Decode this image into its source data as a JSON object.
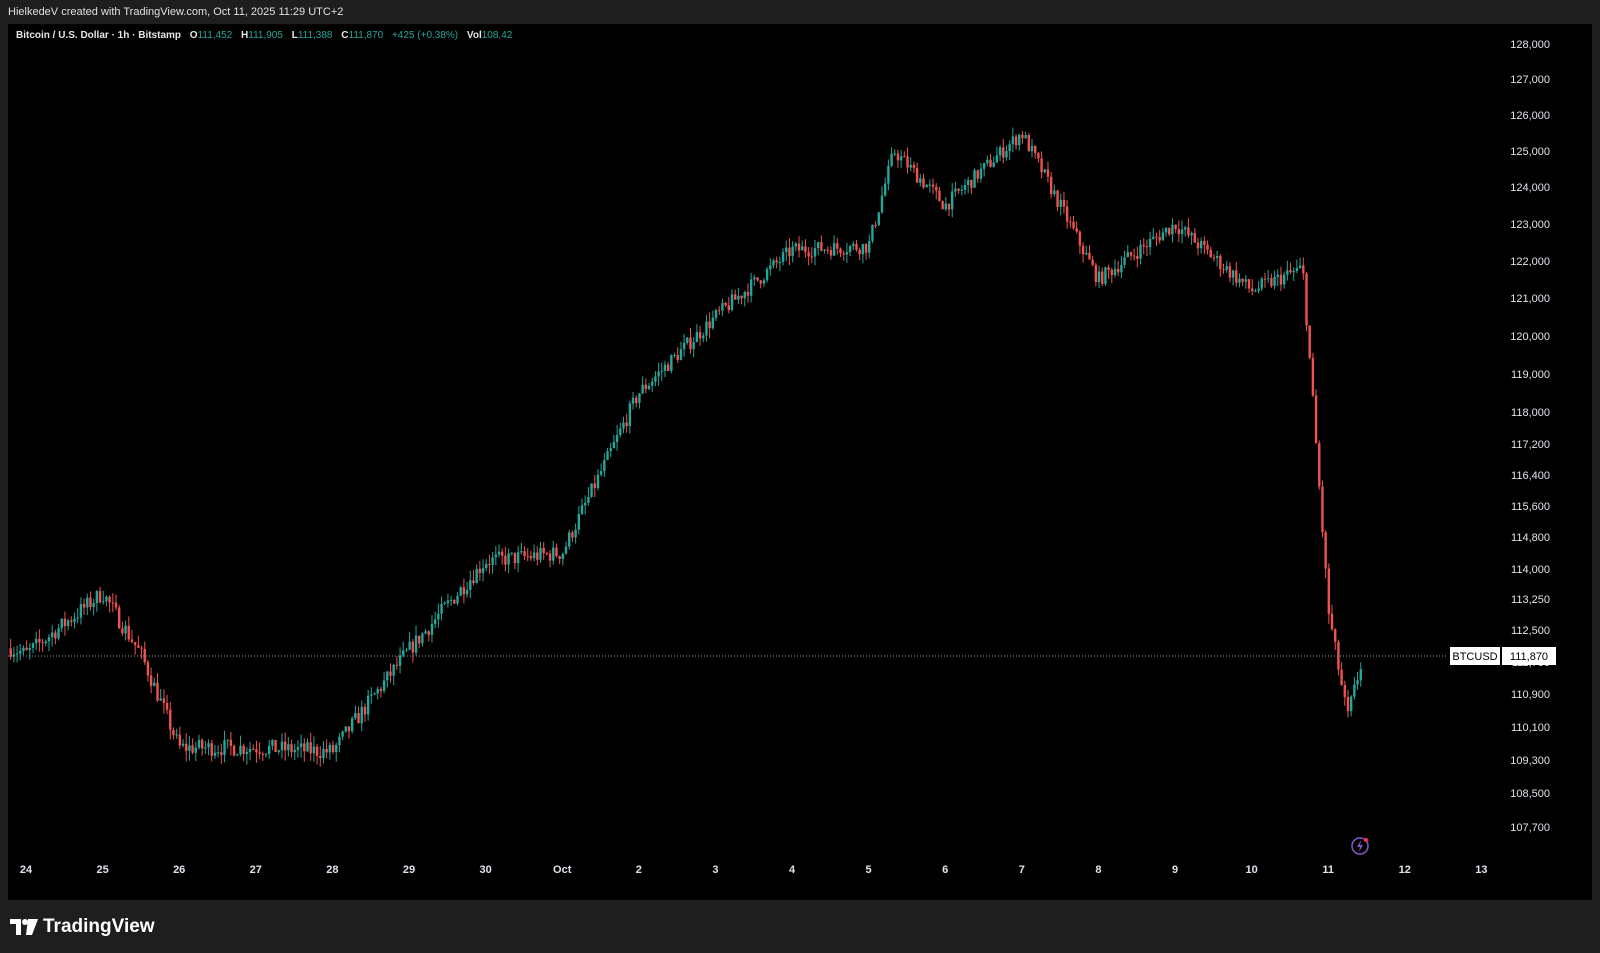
{
  "header": {
    "attribution": "HielkedeV created with TradingView.com, Oct 11, 2025 11:29 UTC+2"
  },
  "legend": {
    "symbol": "Bitcoin / U.S. Dollar · 1h · Bitstamp",
    "o_label": "O",
    "o_value": "111,452",
    "h_label": "H",
    "h_value": "111,905",
    "l_label": "L",
    "l_value": "111,388",
    "c_label": "C",
    "c_value": "111,870",
    "change": "+425 (+0.38%)",
    "vol_label": "Vol",
    "vol_value": "108.42"
  },
  "price_tag": {
    "ticker": "BTCUSD",
    "price": "111,870"
  },
  "footer": {
    "brand": "TradingView"
  },
  "colors": {
    "up": "#26a69a",
    "down": "#ef5350",
    "background": "#000000",
    "frame": "#1e1e1e",
    "pricetag": "#ffffff"
  },
  "icons": {
    "logo": "tradingview-logo-icon",
    "lightning": "lightning-icon"
  },
  "chart_data": {
    "type": "candlestick",
    "title": "Bitcoin / U.S. Dollar · 1h · Bitstamp",
    "x_tick_labels": [
      "24",
      "25",
      "26",
      "27",
      "28",
      "29",
      "30",
      "Oct",
      "2",
      "3",
      "4",
      "5",
      "6",
      "7",
      "8",
      "9",
      "10",
      "11",
      "12",
      "13"
    ],
    "y_tick_labels": [
      "128,000",
      "127,000",
      "126,000",
      "125,000",
      "124,000",
      "123,000",
      "122,000",
      "121,000",
      "120,000",
      "119,000",
      "118,000",
      "117,200",
      "116,400",
      "115,600",
      "114,800",
      "114,000",
      "113,250",
      "112,500",
      "111,700",
      "110,900",
      "110,100",
      "109,300",
      "108,500",
      "107,700"
    ],
    "y_ticks": [
      128000,
      127000,
      126000,
      125000,
      124000,
      123000,
      122000,
      121000,
      120000,
      119000,
      118000,
      117200,
      116400,
      115600,
      114800,
      114000,
      113250,
      112500,
      111700,
      110900,
      110100,
      109300,
      108500,
      107700
    ],
    "y_scale": "log",
    "ylim": [
      107200,
      128300
    ],
    "x_range_days": [
      "Sep 24 2025",
      "Oct 13 2025"
    ],
    "current_price": 111870,
    "approx_daily_path": [
      {
        "date": "Sep 23 2025",
        "price": 112600
      },
      {
        "date": "Sep 24 2025",
        "price": 111900
      },
      {
        "date": "Sep 25 2025",
        "price": 113400
      },
      {
        "date": "Sep 25 2025 12:00",
        "price": 111900
      },
      {
        "date": "Sep 26 2025",
        "price": 109600
      },
      {
        "date": "Sep 27 2025",
        "price": 109600
      },
      {
        "date": "Sep 28 2025",
        "price": 109500
      },
      {
        "date": "Sep 29 2025",
        "price": 112000
      },
      {
        "date": "Sep 30 2025",
        "price": 114200
      },
      {
        "date": "Oct 1 2025",
        "price": 114400
      },
      {
        "date": "Oct 2 2025",
        "price": 118500
      },
      {
        "date": "Oct 3 2025",
        "price": 120500
      },
      {
        "date": "Oct 4 2025",
        "price": 122300
      },
      {
        "date": "Oct 5 2025",
        "price": 122400
      },
      {
        "date": "Oct 5 2025 08:00",
        "price": 125000
      },
      {
        "date": "Oct 6 2025",
        "price": 123500
      },
      {
        "date": "Oct 7 2025",
        "price": 125500
      },
      {
        "date": "Oct 8 2025",
        "price": 121500
      },
      {
        "date": "Oct 9 2025",
        "price": 123000
      },
      {
        "date": "Oct 10 2025",
        "price": 121200
      },
      {
        "date": "Oct 10 2025 16:00",
        "price": 121800
      },
      {
        "date": "Oct 11 2025",
        "price": 113000
      },
      {
        "date": "Oct 11 2025 06:00",
        "price": 110300
      },
      {
        "date": "Oct 11 2025 11:00",
        "price": 111870
      }
    ]
  }
}
